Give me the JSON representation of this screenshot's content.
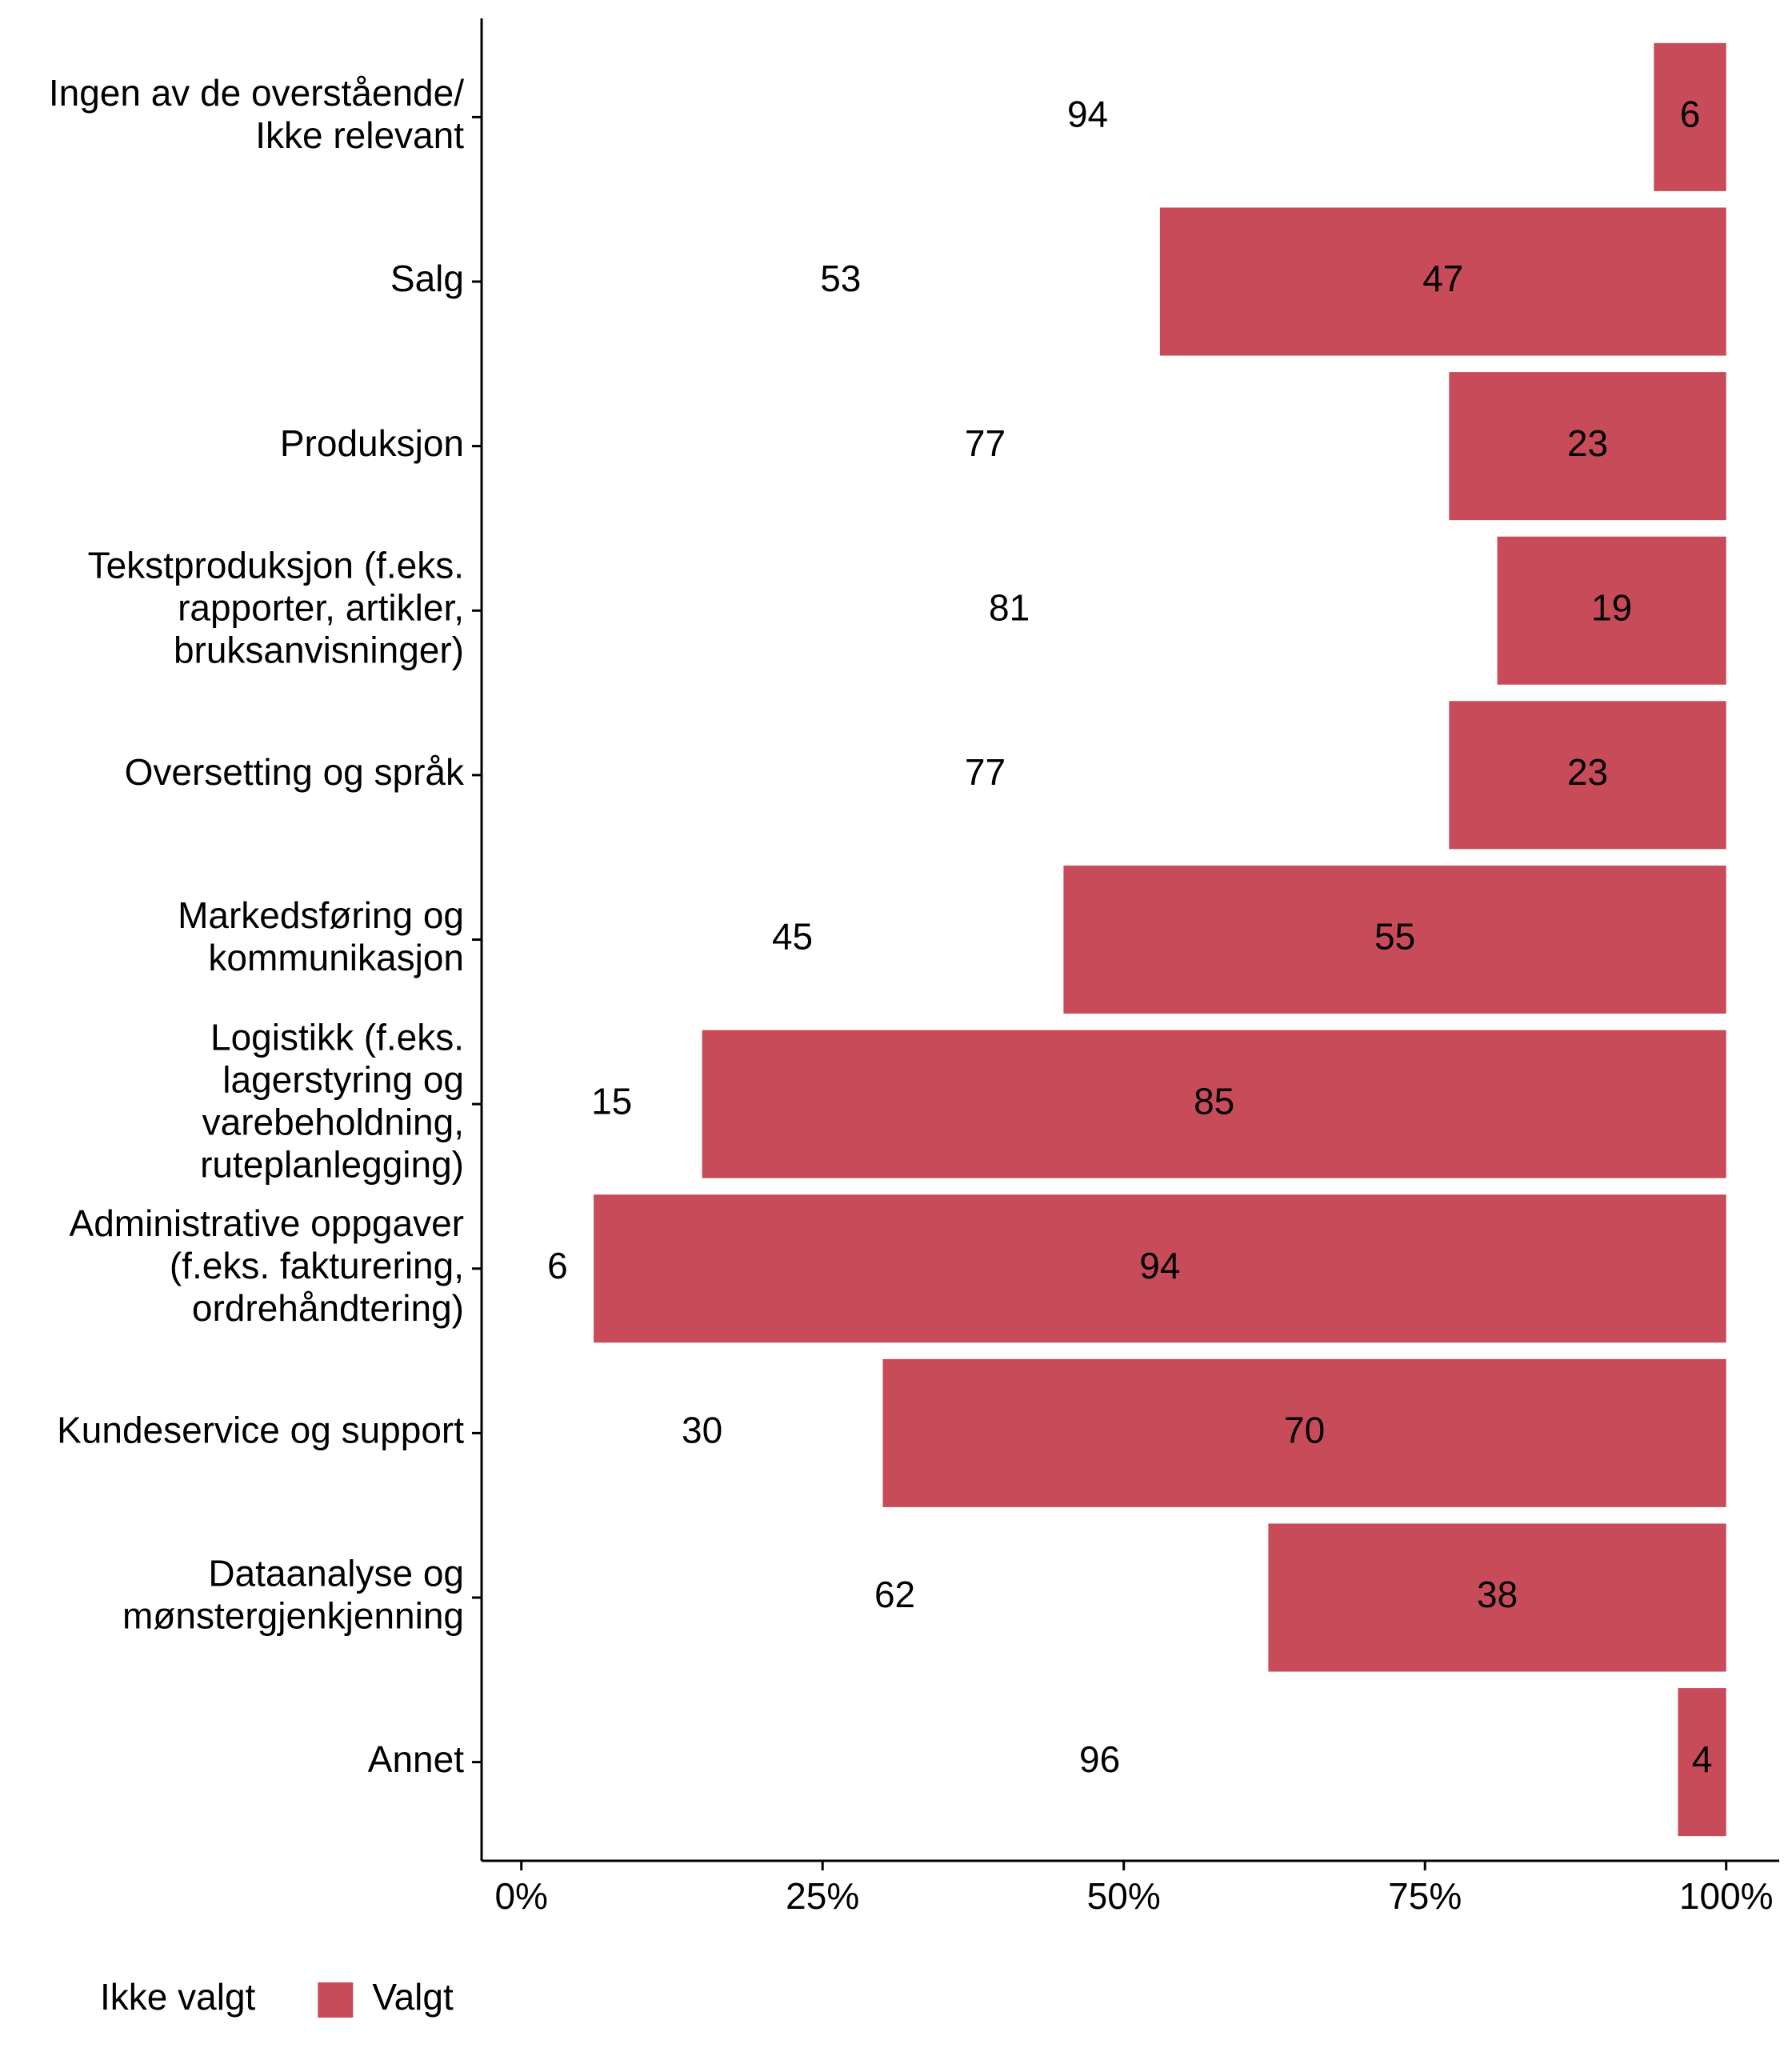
{
  "chart_data": {
    "type": "stacked-bar-horizontal",
    "categories": [
      "Ingen av de overstående/\nIkke relevant",
      "Salg",
      "Produksjon",
      "Tekstproduksjon (f.eks.\nrapporter, artikler,\nbruksanvisninger)",
      "Oversetting og språk",
      "Markedsføring og\nkommunikasjon",
      "Logistikk (f.eks.\nlagerstyring og\nvarebeholdning,\nruteplanlegging)",
      "Administrative oppgaver\n(f.eks. fakturering,\nordrehåndtering)",
      "Kundeservice og support",
      "Dataanalyse og\nmønstergjenkjenning",
      "Annet"
    ],
    "series": [
      {
        "name": "Ikke valgt",
        "color": "#ffffff",
        "label_color": "#000000",
        "values": [
          94,
          53,
          77,
          81,
          77,
          45,
          15,
          6,
          30,
          62,
          96
        ]
      },
      {
        "name": "Valgt",
        "color": "#c84b5a",
        "label_color": "#ffffff",
        "values": [
          6,
          47,
          23,
          19,
          23,
          55,
          85,
          94,
          70,
          38,
          4
        ]
      }
    ],
    "xlim": [
      -3.3,
      104.4
    ],
    "xticks": [
      {
        "value": 0,
        "label": "0%"
      },
      {
        "value": 25,
        "label": "25%"
      },
      {
        "value": 50,
        "label": "50%"
      },
      {
        "value": 75,
        "label": "75%"
      },
      {
        "value": 100,
        "label": "100%"
      }
    ],
    "legend": "bottom-left"
  }
}
